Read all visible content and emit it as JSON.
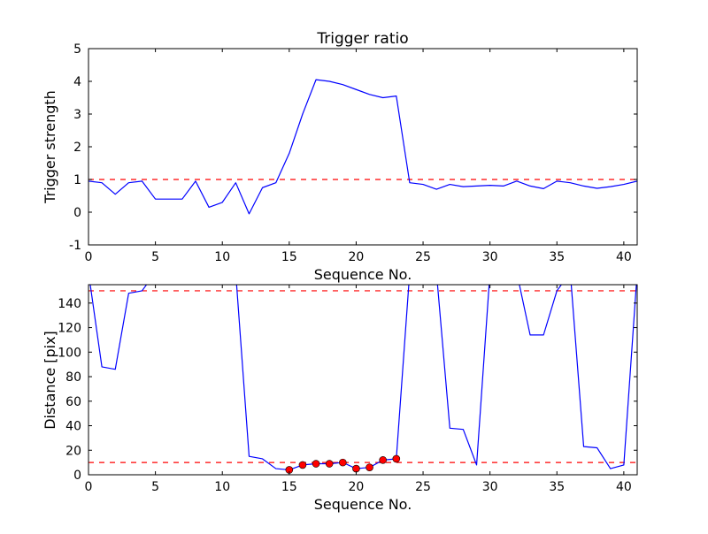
{
  "figure": {
    "background": "#ffffff",
    "line_color": "#0000ff",
    "threshold_color": "#ff0000",
    "marker_face_color": "#ff0000",
    "marker_edge_color": "#000000",
    "axes_color": "#000000"
  },
  "chart_data": [
    {
      "type": "line",
      "title": "Trigger ratio",
      "xlabel": "Sequence No.",
      "ylabel": "Trigger strength",
      "xlim": [
        0,
        41
      ],
      "ylim": [
        -1,
        5
      ],
      "xticks": [
        0,
        5,
        10,
        15,
        20,
        25,
        30,
        35,
        40
      ],
      "yticks": [
        -1,
        0,
        1,
        2,
        3,
        4,
        5
      ],
      "grid": false,
      "legend": null,
      "thresholds": [
        1
      ],
      "threshold_style": "dashed",
      "x": [
        0,
        1,
        2,
        3,
        4,
        5,
        6,
        7,
        8,
        9,
        10,
        11,
        12,
        13,
        14,
        15,
        16,
        17,
        18,
        19,
        20,
        21,
        22,
        23,
        24,
        25,
        26,
        27,
        28,
        29,
        30,
        31,
        32,
        33,
        34,
        35,
        36,
        37,
        38,
        39,
        40,
        41
      ],
      "y": [
        0.95,
        0.9,
        0.55,
        0.9,
        0.95,
        0.4,
        0.4,
        0.4,
        0.95,
        0.15,
        0.3,
        0.9,
        -0.05,
        0.75,
        0.9,
        1.8,
        3.0,
        4.05,
        4.0,
        3.9,
        3.75,
        3.6,
        3.5,
        3.55,
        0.9,
        0.85,
        0.7,
        0.85,
        0.78,
        0.8,
        0.82,
        0.8,
        0.95,
        0.8,
        0.72,
        0.95,
        0.9,
        0.8,
        0.73,
        0.78,
        0.85,
        0.95
      ]
    },
    {
      "type": "line",
      "title": "",
      "xlabel": "Sequence No.",
      "ylabel": "Distance [pix]",
      "xlim": [
        0,
        41
      ],
      "ylim": [
        0,
        155
      ],
      "xticks": [
        0,
        5,
        10,
        15,
        20,
        25,
        30,
        35,
        40
      ],
      "yticks": [
        0,
        20,
        40,
        60,
        80,
        100,
        120,
        140
      ],
      "grid": false,
      "legend": null,
      "thresholds": [
        150,
        10
      ],
      "threshold_style": "dashed",
      "offscale_value_note": "values of 165 are clipped above the visible axes top",
      "x": [
        0,
        1,
        2,
        3,
        4,
        5,
        6,
        7,
        8,
        9,
        10,
        11,
        12,
        13,
        14,
        15,
        16,
        17,
        18,
        19,
        20,
        21,
        22,
        23,
        24,
        25,
        26,
        27,
        28,
        29,
        30,
        31,
        32,
        33,
        34,
        35,
        36,
        37,
        38,
        39,
        40,
        41
      ],
      "y": [
        165,
        88,
        86,
        148,
        150,
        165,
        165,
        165,
        165,
        165,
        165,
        165,
        15,
        13,
        5,
        4,
        8,
        9,
        9,
        10,
        5,
        6,
        12,
        13,
        165,
        165,
        165,
        38,
        37,
        8,
        165,
        165,
        165,
        114,
        114,
        150,
        165,
        23,
        22,
        5,
        8,
        165
      ],
      "markers": {
        "x": [
          15,
          16,
          17,
          18,
          19,
          20,
          21,
          22,
          23
        ],
        "y": [
          4,
          8,
          9,
          9,
          10,
          5,
          6,
          12,
          13
        ]
      }
    }
  ]
}
